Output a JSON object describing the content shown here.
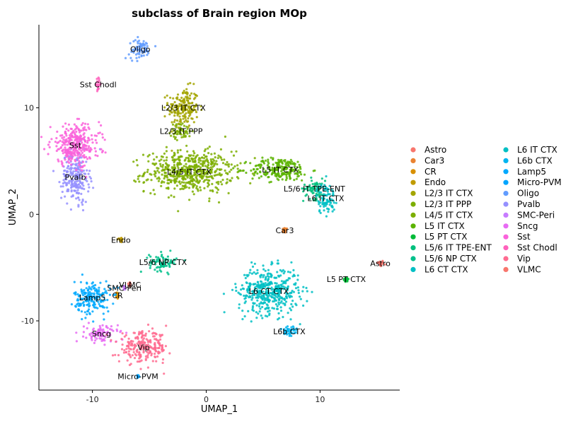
{
  "chart_data": {
    "type": "scatter",
    "title": "subclass of Brain region MOp",
    "xlabel": "UMAP_1",
    "ylabel": "UMAP_2",
    "xlim": [
      -14.7,
      17.0
    ],
    "ylim": [
      -16.5,
      17.8
    ],
    "xticks": [
      -10,
      0,
      10
    ],
    "yticks": [
      -10,
      0,
      10
    ],
    "xtick_labels": [
      "-10",
      "0",
      "10"
    ],
    "ytick_labels": [
      "-10",
      "0",
      "10"
    ],
    "grid": false,
    "legend_position": "right",
    "series": [
      {
        "name": "Astro",
        "color": "#F8766D",
        "center": [
          15.3,
          -4.6
        ],
        "spread": [
          0.25,
          0.25
        ],
        "label": "Astro"
      },
      {
        "name": "Car3",
        "color": "#EA8331",
        "center": [
          6.9,
          -1.5
        ],
        "spread": [
          0.2,
          0.2
        ],
        "label": "Car3"
      },
      {
        "name": "CR",
        "color": "#D89000",
        "center": [
          -7.8,
          -7.6
        ],
        "spread": [
          0.1,
          0.3
        ],
        "label": "CR"
      },
      {
        "name": "Endo",
        "color": "#C09B00",
        "center": [
          -7.5,
          -2.4
        ],
        "spread": [
          0.12,
          0.2
        ],
        "label": "Endo"
      },
      {
        "name": "L2/3 IT CTX",
        "color": "#A3A500",
        "center": [
          -2.0,
          10.0
        ],
        "spread": [
          1.1,
          1.6
        ],
        "label": "L2/3 IT CTX"
      },
      {
        "name": "L2/3 IT PPP",
        "color": "#7CAE00",
        "center": [
          -2.2,
          7.8
        ],
        "spread": [
          0.8,
          0.6
        ],
        "label": "L2/3 IT PPP"
      },
      {
        "name": "L4/5 IT CTX",
        "color": "#7CAE00",
        "center": [
          -1.5,
          4.0
        ],
        "spread": [
          3.2,
          1.6
        ],
        "label": "L4/5 IT CTX"
      },
      {
        "name": "L5 IT CTX",
        "color": "#5BB300",
        "center": [
          6.5,
          4.2
        ],
        "spread": [
          2.2,
          0.9
        ],
        "label": "L5 IT CTX"
      },
      {
        "name": "L5 PT CTX",
        "color": "#00BA38",
        "center": [
          12.3,
          -6.1
        ],
        "spread": [
          0.2,
          0.2
        ],
        "label": "L5 PT CTX"
      },
      {
        "name": "L5/6 IT TPE-ENT",
        "color": "#00BF7D",
        "center": [
          9.5,
          2.4
        ],
        "spread": [
          0.8,
          0.8
        ],
        "label": "L5/6 IT TPE-ENT"
      },
      {
        "name": "L5/6 NP CTX",
        "color": "#00C08B",
        "center": [
          -3.8,
          -4.5
        ],
        "spread": [
          1.0,
          0.7
        ],
        "label": "L5/6 NP CTX"
      },
      {
        "name": "L6 CT CTX",
        "color": "#00BFC4",
        "center": [
          5.5,
          -7.2
        ],
        "spread": [
          2.2,
          1.8
        ],
        "label": "L6 CT CTX"
      },
      {
        "name": "L6 IT CTX",
        "color": "#00BFC4",
        "center": [
          10.5,
          1.5
        ],
        "spread": [
          0.7,
          1.2
        ],
        "label": "L6 IT CTX"
      },
      {
        "name": "L6b CTX",
        "color": "#00B4F0",
        "center": [
          7.3,
          -11.0
        ],
        "spread": [
          0.6,
          0.6
        ],
        "label": "L6b CTX"
      },
      {
        "name": "Lamp5",
        "color": "#00A9FF",
        "center": [
          -10.0,
          -7.8
        ],
        "spread": [
          1.3,
          1.3
        ],
        "label": "Lamp5"
      },
      {
        "name": "Micro-PVM",
        "color": "#00A5FF",
        "center": [
          -6.0,
          -15.2
        ],
        "spread": [
          0.1,
          0.1
        ],
        "label": "Micro-PVM"
      },
      {
        "name": "Oligo",
        "color": "#619CFF",
        "center": [
          -5.8,
          15.5
        ],
        "spread": [
          0.8,
          0.8
        ],
        "label": "Oligo"
      },
      {
        "name": "Pvalb",
        "color": "#9590FF",
        "center": [
          -11.5,
          3.5
        ],
        "spread": [
          1.0,
          2.0
        ],
        "label": "Pvalb"
      },
      {
        "name": "SMC-Peri",
        "color": "#C77CFF",
        "center": [
          -7.2,
          -6.9
        ],
        "spread": [
          0.1,
          0.15
        ],
        "label": "SMC-Peri"
      },
      {
        "name": "Sncg",
        "color": "#E76BF3",
        "center": [
          -9.2,
          -11.2
        ],
        "spread": [
          1.2,
          0.7
        ],
        "label": "Sncg"
      },
      {
        "name": "Sst",
        "color": "#FA62DB",
        "center": [
          -11.5,
          6.5
        ],
        "spread": [
          1.8,
          1.6
        ],
        "label": "Sst"
      },
      {
        "name": "Sst Chodl",
        "color": "#FF62BC",
        "center": [
          -9.5,
          12.2
        ],
        "spread": [
          0.15,
          0.4
        ],
        "label": "Sst Chodl"
      },
      {
        "name": "Vip",
        "color": "#FF6C91",
        "center": [
          -5.5,
          -12.5
        ],
        "spread": [
          1.8,
          1.2
        ],
        "label": "Vip"
      },
      {
        "name": "VLMC",
        "color": "#F8766D",
        "center": [
          -6.7,
          -6.6
        ],
        "spread": [
          0.1,
          0.15
        ],
        "label": "VLMC"
      }
    ]
  }
}
